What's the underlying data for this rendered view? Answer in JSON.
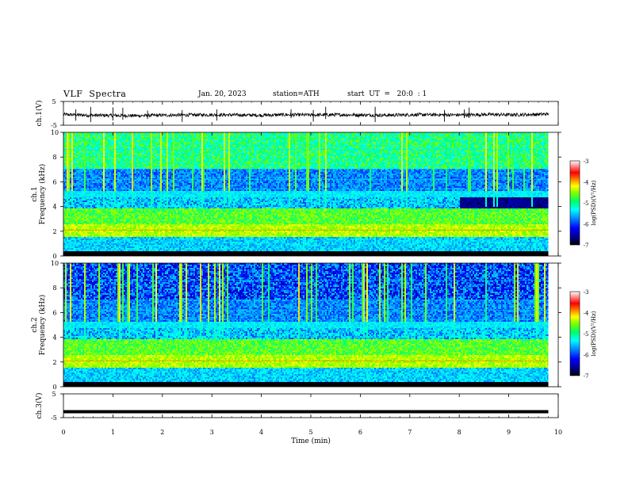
{
  "header": {
    "title": "VLF  Spectra",
    "date": "Jan. 20, 2023",
    "station": "station=ATH",
    "start_ut": "start  UT  =   20:0  : 1"
  },
  "chart_data": [
    {
      "type": "line",
      "panel": "ch1-waveform",
      "ylabel": "ch.1(V)",
      "ylim": [
        -5,
        5
      ],
      "yticks": [
        "5",
        "-5"
      ],
      "x": [
        0,
        0.5,
        1.0,
        1.5,
        2.0,
        2.5,
        3.0,
        3.5,
        4.0,
        4.5,
        5.0,
        5.5,
        6.0,
        6.5,
        7.0,
        7.5,
        8.0,
        8.5,
        9.0,
        9.5,
        9.8
      ],
      "values": [
        -0.5,
        -0.8,
        -0.9,
        -1.0,
        -0.8,
        -0.7,
        -0.6,
        -0.7,
        -0.8,
        -0.6,
        -0.7,
        -0.6,
        -0.7,
        -0.8,
        -0.6,
        -0.6,
        -0.7,
        -0.5,
        -0.6,
        -0.5,
        -0.3
      ],
      "color": "#000000"
    },
    {
      "type": "heatmap",
      "panel": "ch1-spectrogram",
      "ylabel": "ch.1  Frequency (kHz)",
      "ylim": [
        0,
        10
      ],
      "yticks": [
        "0",
        "2",
        "4",
        "6",
        "8",
        "10"
      ],
      "colorbar": {
        "label": "log(PSD)(V²/Hz)",
        "range": [
          -7,
          -3
        ],
        "ticks": [
          "-3",
          "-4",
          "-5",
          "-6",
          "-7"
        ]
      }
    },
    {
      "type": "heatmap",
      "panel": "ch2-spectrogram",
      "ylabel": "ch.2  Frequency (kHz)",
      "ylim": [
        0,
        10
      ],
      "yticks": [
        "0",
        "2",
        "4",
        "6",
        "8",
        "10"
      ],
      "colorbar": {
        "label": "log(PSD)(V²/Hz)",
        "range": [
          -7,
          -3
        ],
        "ticks": [
          "-3",
          "-4",
          "-5",
          "-6",
          "-7"
        ]
      }
    },
    {
      "type": "line",
      "panel": "ch3-waveform",
      "ylabel": "ch.3(V)",
      "ylim": [
        -5,
        5
      ],
      "yticks": [
        "5",
        "-5"
      ],
      "x": [
        0,
        9.8
      ],
      "values": [
        -2.5,
        -2.5
      ],
      "color": "#000000"
    }
  ],
  "xaxis": {
    "label": "Time  (min)",
    "xlim": [
      0,
      10
    ],
    "ticks": [
      "0",
      "1",
      "2",
      "3",
      "4",
      "5",
      "6",
      "7",
      "8",
      "9",
      "10"
    ]
  },
  "colors": {
    "background": "#ffffff",
    "axes": "#000000",
    "colormap": [
      "#000000",
      "#00007f",
      "#0000ff",
      "#00a0ff",
      "#00ffff",
      "#00ff80",
      "#80ff00",
      "#ffff00",
      "#ff8000",
      "#ff0000",
      "#ff8080",
      "#ffffff"
    ]
  }
}
